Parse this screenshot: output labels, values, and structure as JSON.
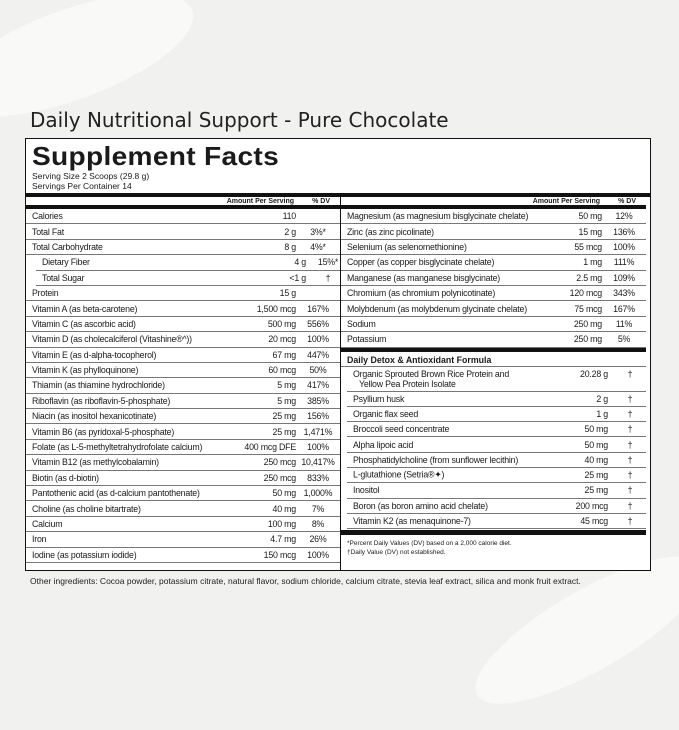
{
  "title": "Daily Nutritional Support - Pure Chocolate",
  "panel": {
    "heading": "Supplement Facts",
    "serving_size": "Serving Size 2 Scoops (29.8 g)",
    "servings_per_container": "Servings Per Container 14",
    "col_amount": "Amount Per Serving",
    "col_dv": "% DV",
    "left_rows": [
      {
        "name": "Calories",
        "amount": "110",
        "dv": ""
      },
      {
        "name": "Total Fat",
        "amount": "2 g",
        "dv": "3%*"
      },
      {
        "name": "Total Carbohydrate",
        "amount": "8 g",
        "dv": "4%*"
      },
      {
        "name": "Dietary Fiber",
        "amount": "4 g",
        "dv": "15%*"
      },
      {
        "name": "Total Sugar",
        "amount": "<1 g",
        "dv": "†"
      },
      {
        "name": "Protein",
        "amount": "15 g",
        "dv": ""
      },
      {
        "name": "Vitamin A (as beta-carotene)",
        "amount": "1,500 mcg",
        "dv": "167%"
      },
      {
        "name": "Vitamin C (as ascorbic acid)",
        "amount": "500 mg",
        "dv": "556%"
      },
      {
        "name": "Vitamin D (as cholecalciferol (Vitashine®^))",
        "amount": "20 mcg",
        "dv": "100%"
      },
      {
        "name": "Vitamin E (as d-alpha-tocopherol)",
        "amount": "67 mg",
        "dv": "447%"
      },
      {
        "name": "Vitamin K (as phylloquinone)",
        "amount": "60 mcg",
        "dv": "50%"
      },
      {
        "name": "Thiamin (as thiamine hydrochloride)",
        "amount": "5 mg",
        "dv": "417%"
      },
      {
        "name": "Riboflavin (as riboflavin-5-phosphate)",
        "amount": "5 mg",
        "dv": "385%"
      },
      {
        "name": "Niacin (as inositol hexanicotinate)",
        "amount": "25 mg",
        "dv": "156%"
      },
      {
        "name": "Vitamin B6 (as pyridoxal-5-phosphate)",
        "amount": "25 mg",
        "dv": "1,471%"
      },
      {
        "name": "Folate (as L-5-methyltetrahydrofolate calcium)",
        "amount": "400 mcg DFE",
        "dv": "100%"
      },
      {
        "name": "Vitamin B12 (as methylcobalamin)",
        "amount": "250 mcg",
        "dv": "10,417%"
      },
      {
        "name": "Biotin (as d-biotin)",
        "amount": "250 mcg",
        "dv": "833%"
      },
      {
        "name": "Pantothenic acid (as d-calcium pantothenate)",
        "amount": "50 mg",
        "dv": "1,000%"
      },
      {
        "name": "Choline (as choline bitartrate)",
        "amount": "40 mg",
        "dv": "7%"
      },
      {
        "name": "Calcium",
        "amount": "100 mg",
        "dv": "8%"
      },
      {
        "name": "Iron",
        "amount": "4.7 mg",
        "dv": "26%"
      },
      {
        "name": "Iodine (as potassium iodide)",
        "amount": "150 mcg",
        "dv": "100%"
      }
    ],
    "right_rows": [
      {
        "name": "Magnesium (as magnesium bisglycinate chelate)",
        "amount": "50 mg",
        "dv": "12%"
      },
      {
        "name": "Zinc (as zinc picolinate)",
        "amount": "15 mg",
        "dv": "136%"
      },
      {
        "name": "Selenium (as selenomethionine)",
        "amount": "55 mcg",
        "dv": "100%"
      },
      {
        "name": "Copper (as copper bisglycinate chelate)",
        "amount": "1 mg",
        "dv": "111%"
      },
      {
        "name": "Manganese (as manganese bisglycinate)",
        "amount": "2.5 mg",
        "dv": "109%"
      },
      {
        "name": "Chromium (as chromium polynicotinate)",
        "amount": "120 mcg",
        "dv": "343%"
      },
      {
        "name": "Molybdenum (as molybdenum glycinate chelate)",
        "amount": "75 mcg",
        "dv": "167%"
      },
      {
        "name": "Sodium",
        "amount": "250 mg",
        "dv": "11%"
      },
      {
        "name": "Potassium",
        "amount": "250 mg",
        "dv": "5%"
      }
    ],
    "blend_title": "Daily Detox & Antioxidant Formula",
    "blend_rows": [
      {
        "name": "Organic Sprouted Brown Rice Protein and",
        "name2": "Yellow Pea Protein Isolate",
        "amount": "20.28 g",
        "dv": "†"
      },
      {
        "name": "Psyllium husk",
        "amount": "2 g",
        "dv": "†"
      },
      {
        "name": "Organic flax seed",
        "amount": "1 g",
        "dv": "†"
      },
      {
        "name": "Broccoli seed concentrate",
        "amount": "50 mg",
        "dv": "†"
      },
      {
        "name": "Alpha lipoic acid",
        "amount": "50 mg",
        "dv": "†"
      },
      {
        "name": "Phosphatidylcholine (from sunflower lecithin)",
        "amount": "40 mg",
        "dv": "†"
      },
      {
        "name": "L-glutathione (Setria®✦)",
        "amount": "25 mg",
        "dv": "†"
      },
      {
        "name": "Inositol",
        "amount": "25 mg",
        "dv": "†"
      },
      {
        "name": "Boron (as boron amino acid chelate)",
        "amount": "200 mcg",
        "dv": "†"
      },
      {
        "name": "Vitamin K2 (as menaquinone-7)",
        "amount": "45 mcg",
        "dv": "†"
      }
    ],
    "footnote1": "*Percent Daily Values (DV) based on a 2,000 calorie diet.",
    "footnote2": "†Daily Value (DV) not established."
  },
  "other_ingredients": "Other ingredients: Cocoa powder, potassium citrate, natural flavor, sodium chloride, calcium citrate, stevia leaf extract, silica and monk fruit extract."
}
